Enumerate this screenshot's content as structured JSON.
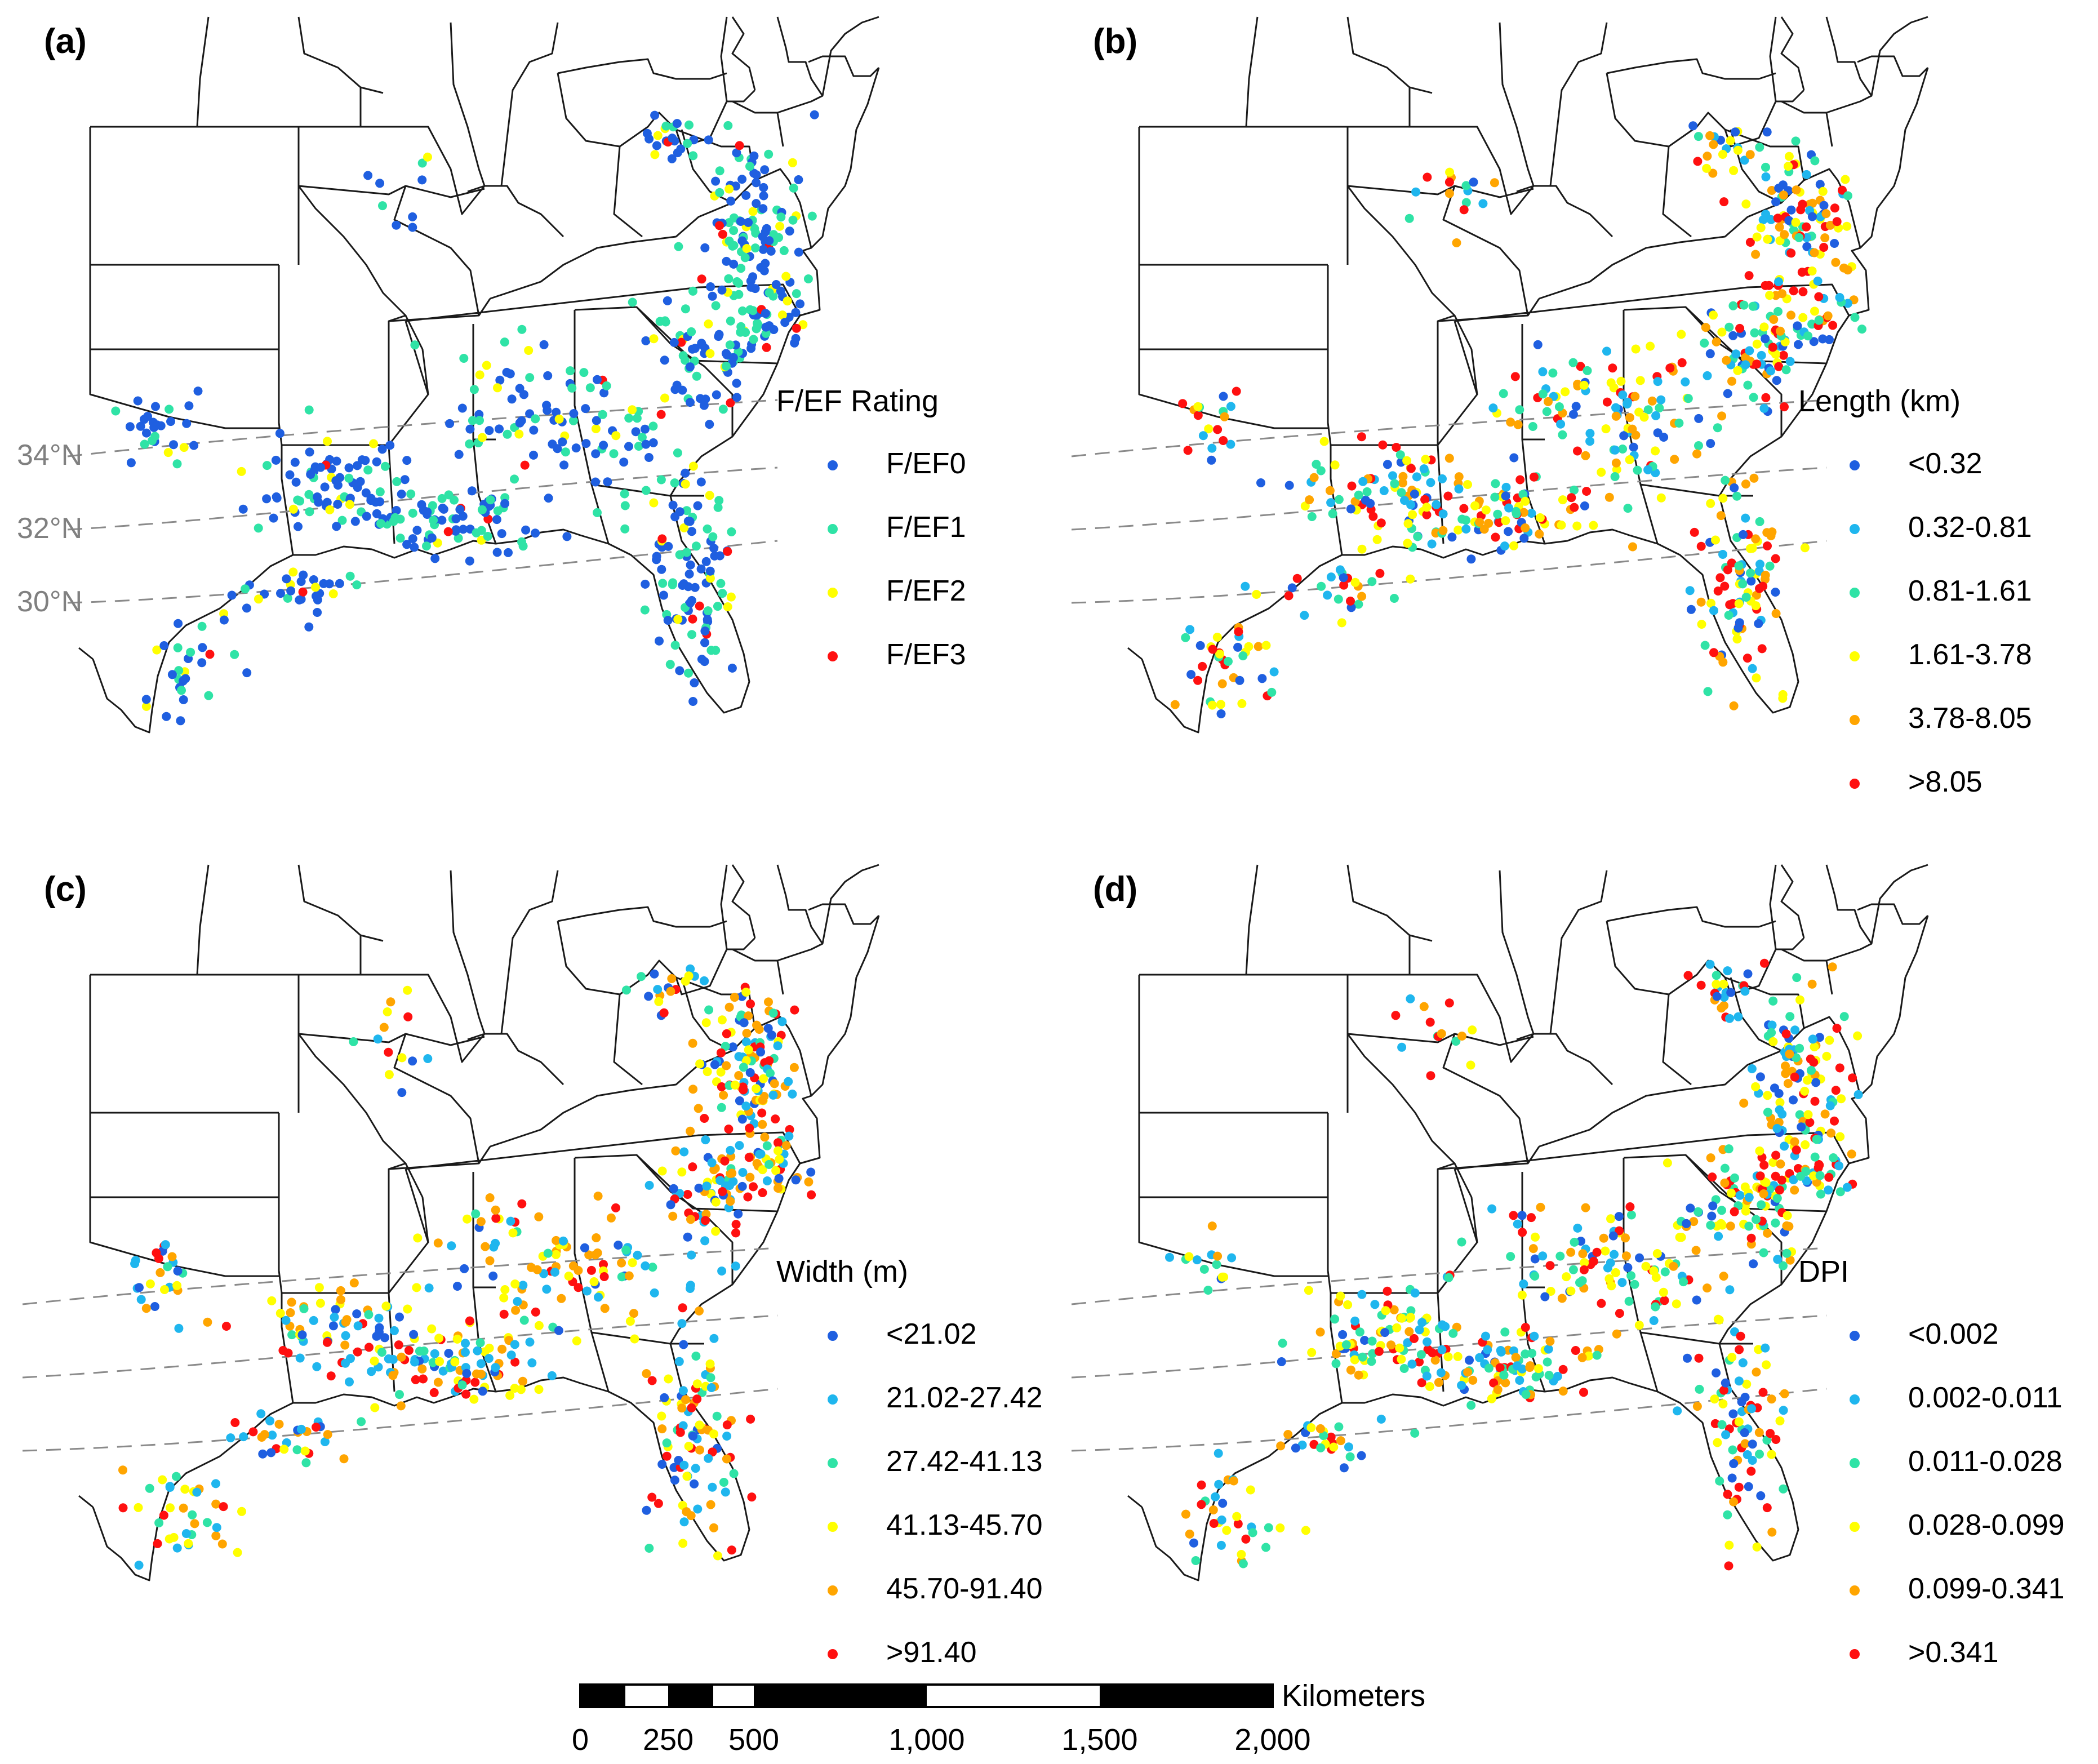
{
  "panels": [
    {
      "id": "a",
      "label": "(a)",
      "legend_title": "F/EF Rating",
      "classes": [
        {
          "label": "F/EF0",
          "color": "#1f5fe0"
        },
        {
          "label": "F/EF1",
          "color": "#2fe3a6"
        },
        {
          "label": "F/EF2",
          "color": "#ffff00"
        },
        {
          "label": "F/EF3",
          "color": "#ff1010"
        }
      ],
      "weights": [
        0.55,
        0.33,
        0.09,
        0.03
      ],
      "seed": 11,
      "show_lat_labels": true
    },
    {
      "id": "b",
      "label": "(b)",
      "legend_title": "Length (km)",
      "classes": [
        {
          "label": "<0.32",
          "color": "#1f5fe0"
        },
        {
          "label": "0.32-0.81",
          "color": "#1fb6ee"
        },
        {
          "label": "0.81-1.61",
          "color": "#2fe3a6"
        },
        {
          "label": "1.61-3.78",
          "color": "#ffff00"
        },
        {
          "label": "3.78-8.05",
          "color": "#ffa500"
        },
        {
          "label": ">8.05",
          "color": "#ff1010"
        }
      ],
      "weights": [
        0.12,
        0.18,
        0.17,
        0.17,
        0.18,
        0.18
      ],
      "seed": 23,
      "show_lat_labels": false
    },
    {
      "id": "c",
      "label": "(c)",
      "legend_title": "Width (m)",
      "classes": [
        {
          "label": "<21.02",
          "color": "#1f5fe0"
        },
        {
          "label": "21.02-27.42",
          "color": "#1fb6ee"
        },
        {
          "label": "27.42-41.13",
          "color": "#2fe3a6"
        },
        {
          "label": "41.13-45.70",
          "color": "#ffff00"
        },
        {
          "label": "45.70-91.40",
          "color": "#ffa500"
        },
        {
          "label": ">91.40",
          "color": "#ff1010"
        }
      ],
      "weights": [
        0.12,
        0.2,
        0.1,
        0.18,
        0.24,
        0.16
      ],
      "seed": 37,
      "show_lat_labels": false
    },
    {
      "id": "d",
      "label": "(d)",
      "legend_title": "DPI",
      "classes": [
        {
          "label": "<0.002",
          "color": "#1f5fe0"
        },
        {
          "label": "0.002-0.011",
          "color": "#1fb6ee"
        },
        {
          "label": "0.011-0.028",
          "color": "#2fe3a6"
        },
        {
          "label": "0.028-0.099",
          "color": "#ffff00"
        },
        {
          "label": "0.099-0.341",
          "color": "#ffa500"
        },
        {
          "label": ">0.341",
          "color": "#ff1010"
        }
      ],
      "weights": [
        0.1,
        0.17,
        0.17,
        0.19,
        0.2,
        0.17
      ],
      "seed": 53,
      "show_lat_labels": false
    }
  ],
  "latitude_labels": [
    "34°N",
    "32°N",
    "30°N"
  ],
  "scale_bar": {
    "unit": "Kilometers",
    "tick_labels": [
      "0",
      "250",
      "500",
      "1,000",
      "1,500",
      "2,000"
    ]
  }
}
